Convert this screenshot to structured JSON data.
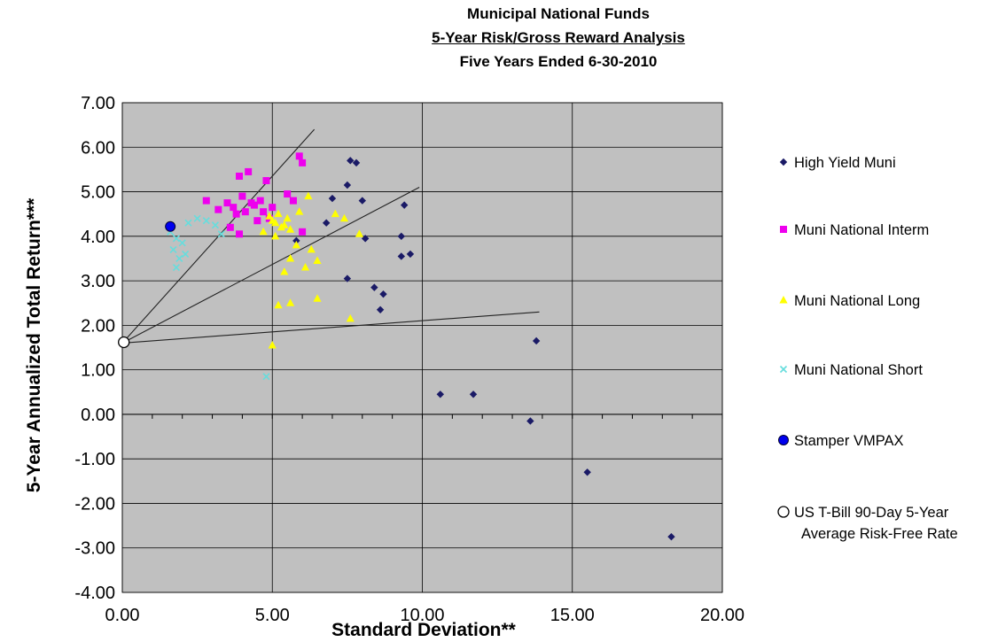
{
  "chart_data": {
    "type": "scatter",
    "title": "Municipal National Funds",
    "subtitle": "5-Year Risk/Gross Reward Analysis",
    "subtitle2": "Five Years Ended 6-30-2010",
    "xlabel": "Standard Deviation**",
    "ylabel": "5-Year Annualized Total Return***",
    "xlim": [
      0,
      20
    ],
    "ylim": [
      -4,
      7
    ],
    "xticks": [
      "0.00",
      "5.00",
      "10.00",
      "15.00",
      "20.00"
    ],
    "yticks": [
      "-4.00",
      "-3.00",
      "-2.00",
      "-1.00",
      "0.00",
      "1.00",
      "2.00",
      "3.00",
      "4.00",
      "5.00",
      "6.00",
      "7.00"
    ],
    "grid": true,
    "plot_background": "#c0c0c0",
    "legend_position": "right",
    "series": [
      {
        "name": "High Yield Muni",
        "marker": "diamond",
        "color": "#1a1a66",
        "points": [
          [
            7.5,
            5.15
          ],
          [
            7.6,
            5.7
          ],
          [
            7.8,
            5.65
          ],
          [
            7.0,
            4.85
          ],
          [
            6.8,
            4.3
          ],
          [
            8.0,
            4.8
          ],
          [
            9.4,
            4.7
          ],
          [
            9.3,
            4.0
          ],
          [
            8.1,
            3.95
          ],
          [
            9.3,
            3.55
          ],
          [
            9.6,
            3.6
          ],
          [
            7.5,
            3.05
          ],
          [
            8.4,
            2.85
          ],
          [
            8.7,
            2.7
          ],
          [
            8.6,
            2.35
          ],
          [
            13.8,
            1.65
          ],
          [
            10.6,
            0.45
          ],
          [
            11.7,
            0.45
          ],
          [
            13.6,
            -0.15
          ],
          [
            15.5,
            -1.3
          ],
          [
            18.3,
            -2.75
          ],
          [
            5.8,
            3.9
          ]
        ]
      },
      {
        "name": "Muni National Interm",
        "marker": "square",
        "color": "#ee00ee",
        "points": [
          [
            4.2,
            5.45
          ],
          [
            3.9,
            5.35
          ],
          [
            4.8,
            5.25
          ],
          [
            5.9,
            5.8
          ],
          [
            6.0,
            5.65
          ],
          [
            5.5,
            4.95
          ],
          [
            5.7,
            4.8
          ],
          [
            2.8,
            4.8
          ],
          [
            3.5,
            4.75
          ],
          [
            4.0,
            4.9
          ],
          [
            4.3,
            4.75
          ],
          [
            4.6,
            4.8
          ],
          [
            3.8,
            4.5
          ],
          [
            4.1,
            4.55
          ],
          [
            3.2,
            4.6
          ],
          [
            4.5,
            4.35
          ],
          [
            3.6,
            4.2
          ],
          [
            3.9,
            4.05
          ],
          [
            5.0,
            4.65
          ],
          [
            6.0,
            4.1
          ],
          [
            4.7,
            4.55
          ],
          [
            4.4,
            4.7
          ],
          [
            3.7,
            4.65
          ],
          [
            4.9,
            4.4
          ]
        ]
      },
      {
        "name": "Muni National Long",
        "marker": "triangle",
        "color": "#ffff00",
        "points": [
          [
            4.9,
            4.45
          ],
          [
            5.0,
            4.35
          ],
          [
            5.1,
            4.3
          ],
          [
            5.2,
            4.5
          ],
          [
            5.3,
            4.2
          ],
          [
            5.4,
            4.25
          ],
          [
            5.1,
            4.0
          ],
          [
            5.6,
            4.15
          ],
          [
            6.2,
            4.9
          ],
          [
            5.9,
            4.55
          ],
          [
            7.1,
            4.5
          ],
          [
            7.4,
            4.4
          ],
          [
            6.3,
            3.7
          ],
          [
            6.5,
            3.45
          ],
          [
            5.8,
            3.8
          ],
          [
            6.1,
            3.3
          ],
          [
            5.4,
            3.2
          ],
          [
            5.6,
            3.5
          ],
          [
            7.9,
            4.05
          ],
          [
            5.2,
            2.45
          ],
          [
            5.6,
            2.5
          ],
          [
            6.5,
            2.6
          ],
          [
            7.6,
            2.15
          ],
          [
            5.0,
            1.55
          ],
          [
            4.7,
            4.1
          ],
          [
            5.5,
            4.4
          ]
        ]
      },
      {
        "name": "Muni National Short",
        "marker": "x",
        "color": "#66dddd",
        "points": [
          [
            1.6,
            4.1
          ],
          [
            1.8,
            3.95
          ],
          [
            2.2,
            4.3
          ],
          [
            2.5,
            4.4
          ],
          [
            3.1,
            4.25
          ],
          [
            1.7,
            3.7
          ],
          [
            2.0,
            3.85
          ],
          [
            1.9,
            3.5
          ],
          [
            1.8,
            3.3
          ],
          [
            2.8,
            4.35
          ],
          [
            3.3,
            4.05
          ],
          [
            4.8,
            0.85
          ],
          [
            2.1,
            3.6
          ]
        ]
      },
      {
        "name": "Stamper VMPAX",
        "marker": "circle",
        "color": "#0000ee",
        "points": [
          [
            1.6,
            4.22
          ]
        ]
      },
      {
        "name": "US T-Bill 90-Day 5-Year Average Risk-Free Rate",
        "marker": "open-circle",
        "color": "#000000",
        "points": [
          [
            0.05,
            1.62
          ]
        ]
      }
    ],
    "reference_lines": [
      {
        "from": [
          0,
          1.6
        ],
        "to": [
          6.4,
          6.4
        ]
      },
      {
        "from": [
          0,
          1.6
        ],
        "to": [
          9.9,
          5.1
        ]
      },
      {
        "from": [
          0,
          1.6
        ],
        "to": [
          13.9,
          2.3
        ]
      }
    ]
  }
}
